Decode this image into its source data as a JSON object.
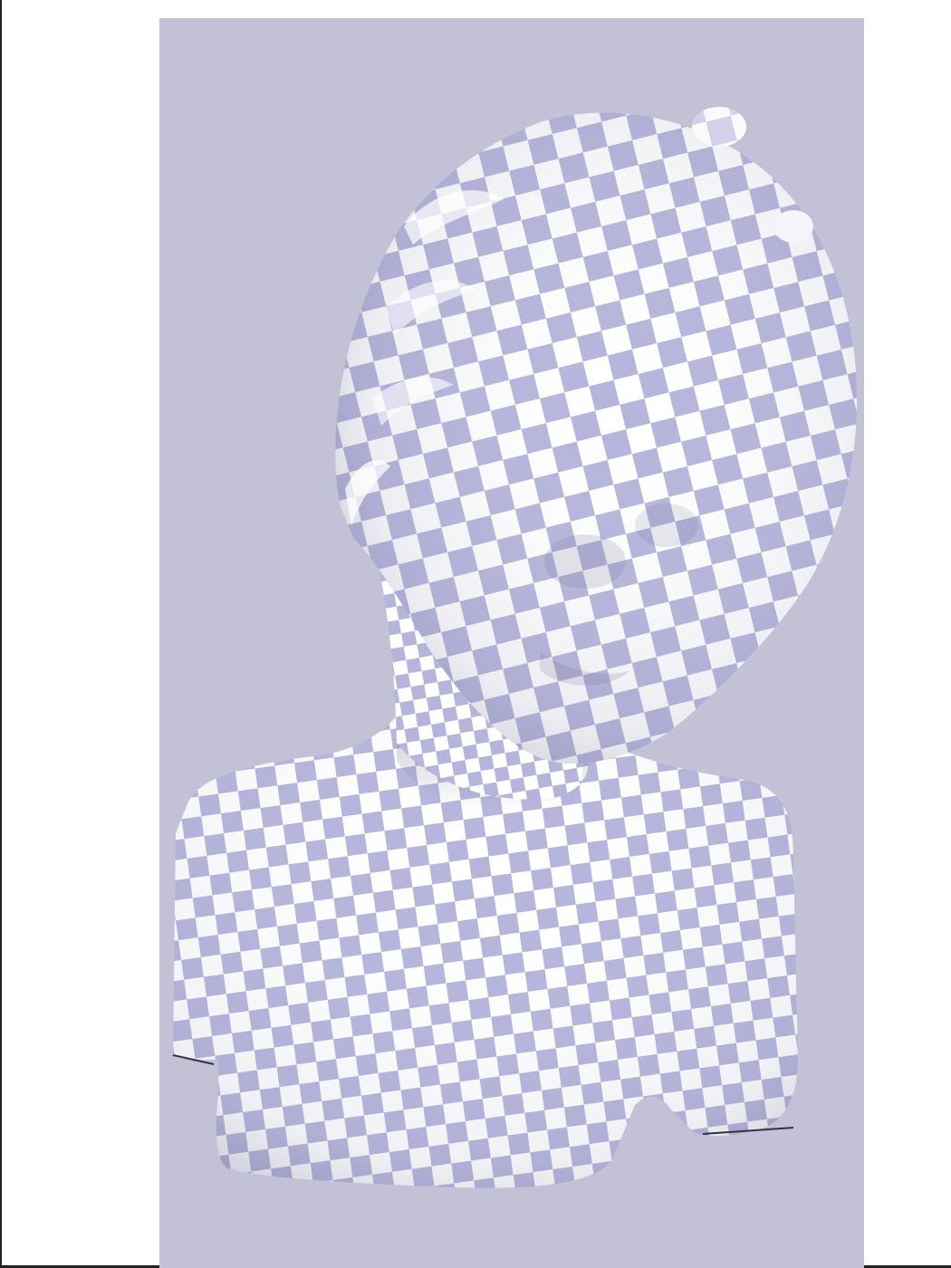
{
  "scene": {
    "description_icon": "checkerboard-textured-bust",
    "background_color": "#c3c1d6",
    "checker_light": "#ffffff",
    "checker_dark": "#b5b5dc",
    "frame_color": "#222222"
  }
}
